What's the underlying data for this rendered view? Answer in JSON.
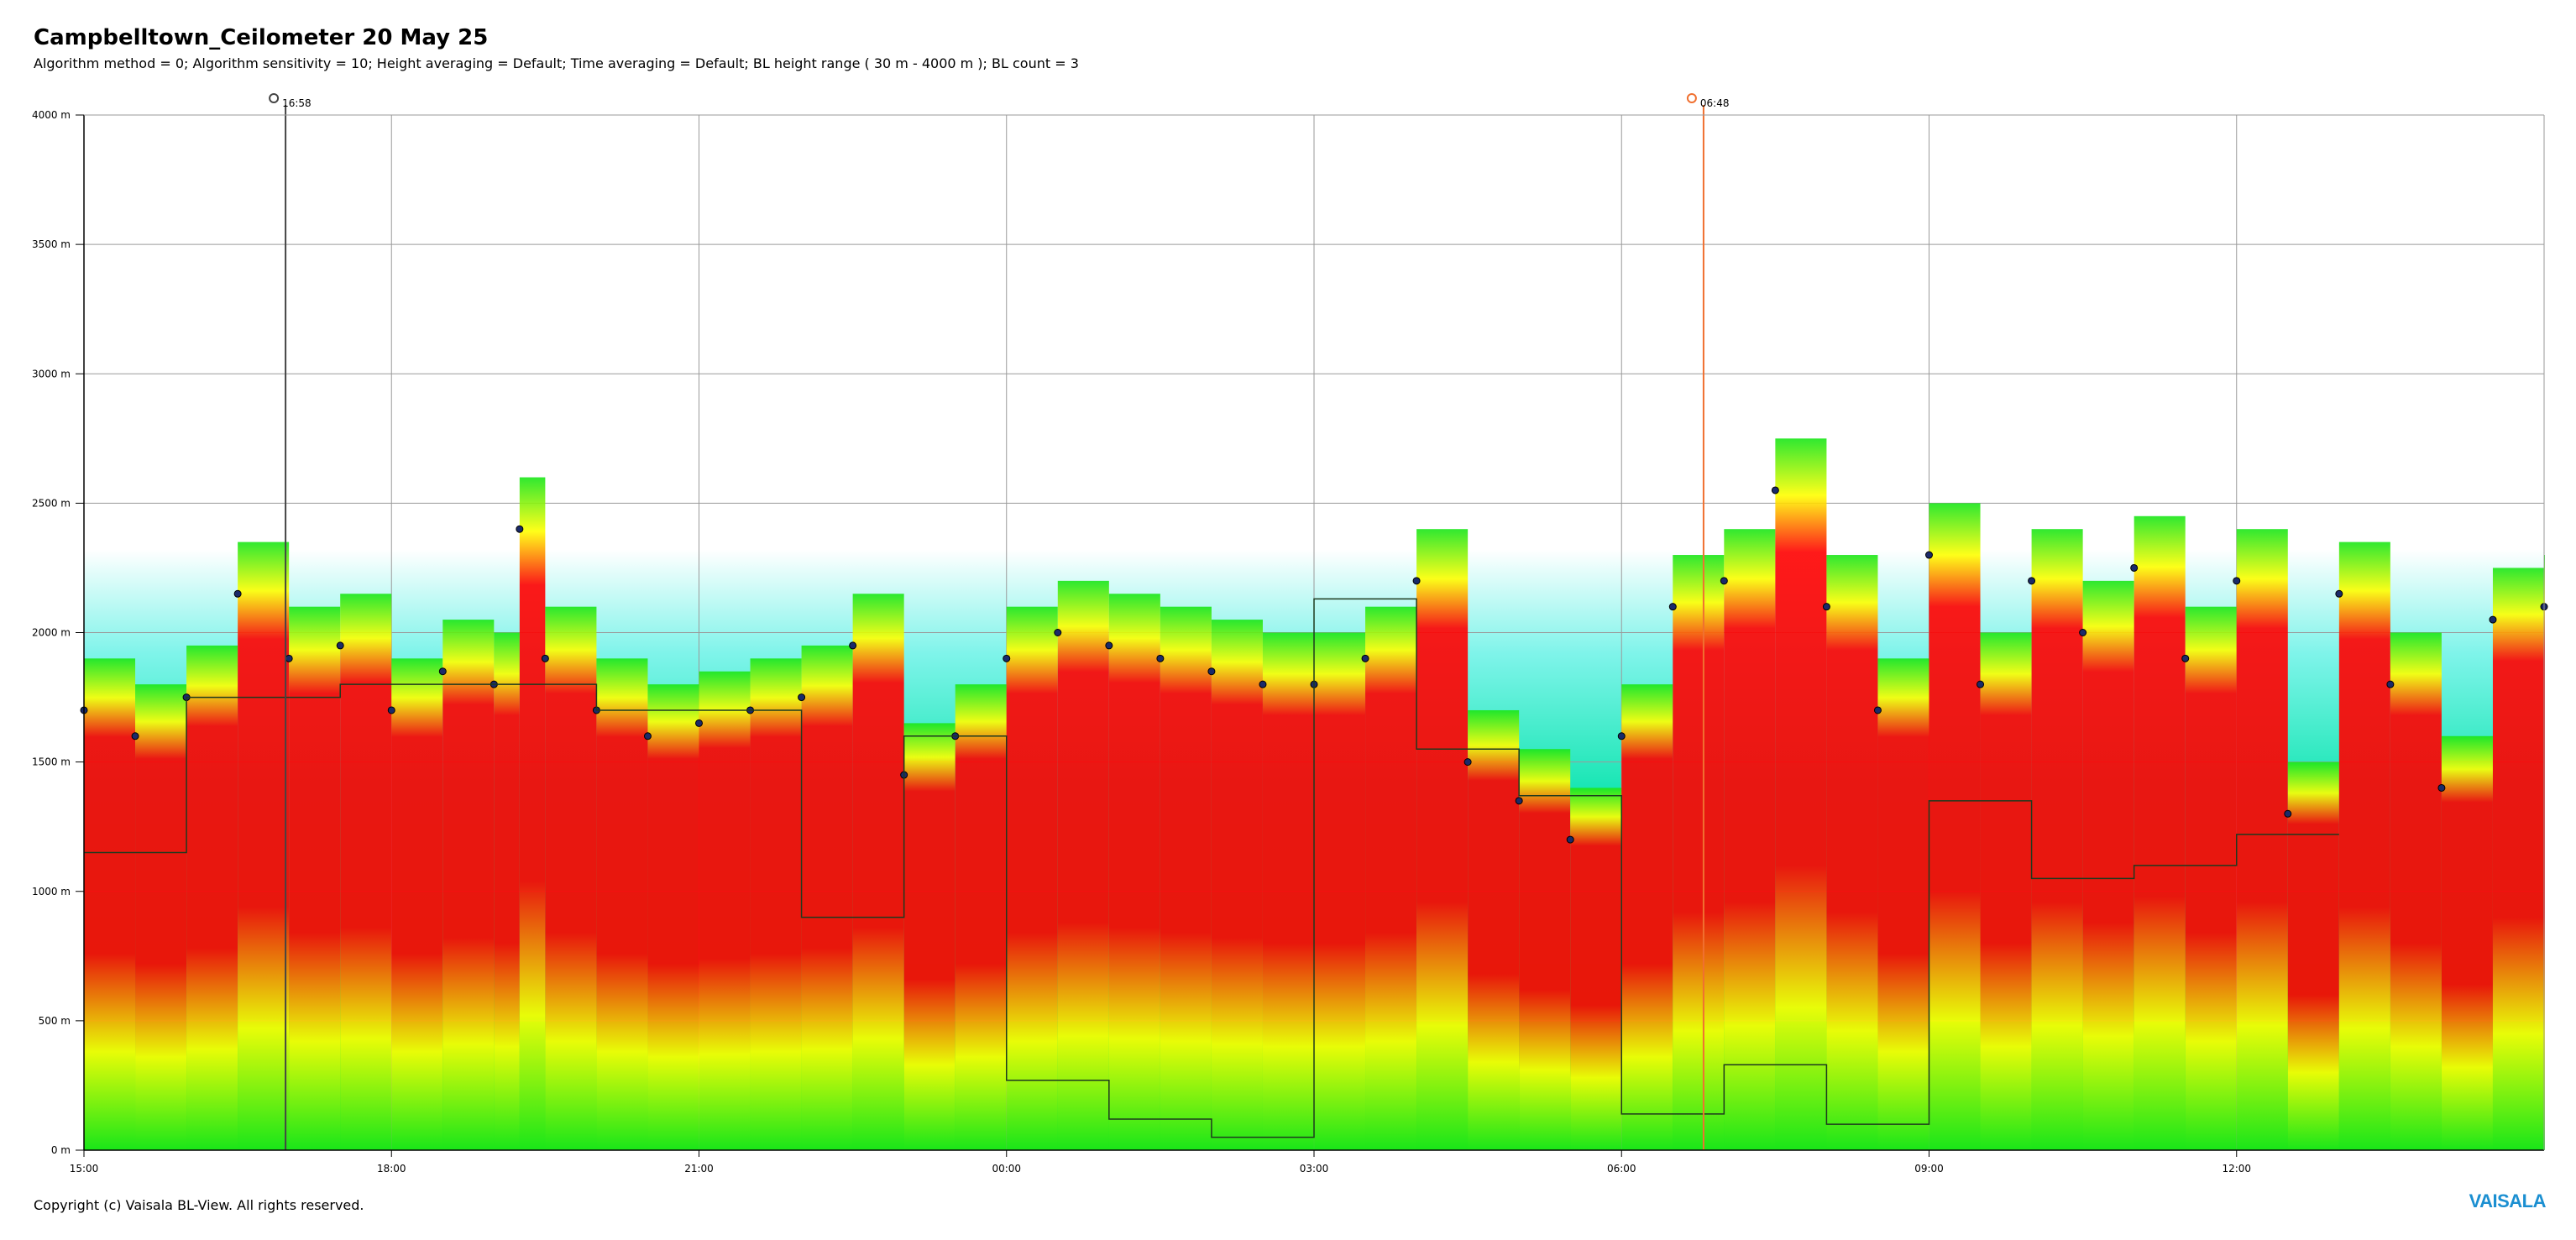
{
  "header": {
    "title": "Campbelltown_Ceilometer 20 May 25",
    "subtitle": "Algorithm method = 0; Algorithm sensitivity = 10; Height averaging = Default; Time averaging = Default; BL height range ( 30 m - 4000 m ); BL count = 3"
  },
  "footer": {
    "copyright": "Copyright (c) Vaisala BL-View. All rights reserved.",
    "brand": "VAISALA"
  },
  "chart_data": {
    "type": "heatmap",
    "title": "Campbelltown_Ceilometer 20 May 25",
    "x_start_hour": 15.0,
    "x_end_hour": 39.0,
    "ylim": [
      0,
      4000
    ],
    "y_ticks": [
      0,
      500,
      1000,
      1500,
      2000,
      2500,
      3000,
      3500,
      4000
    ],
    "y_tick_labels": [
      "0 m",
      "500 m",
      "1000 m",
      "1500 m",
      "2000 m",
      "2500 m",
      "3000 m",
      "3500 m",
      "4000 m"
    ],
    "x_ticks": [
      15,
      18,
      21,
      24,
      27,
      30,
      33,
      36
    ],
    "x_tick_labels": [
      "15:00",
      "18:00",
      "21:00",
      "00:00",
      "03:00",
      "06:00",
      "09:00",
      "12:00"
    ],
    "grid": true,
    "sunset": {
      "hour": 16.9667,
      "label": "16:58"
    },
    "sunrise": {
      "hour": 30.8,
      "label": "06:48"
    },
    "colors": {
      "background": "#00e0d0",
      "low": "#19e619",
      "mid": "#ffff00",
      "high": "#ff0000",
      "sunset_line": "#444444",
      "sunrise_line": "#f07030",
      "sun_icon_rise": "#f07030",
      "sun_icon_set": "#444444"
    },
    "aerosol_layer_top": [
      [
        15.0,
        1700
      ],
      [
        15.5,
        1600
      ],
      [
        16.0,
        1750
      ],
      [
        16.5,
        2150
      ],
      [
        17.0,
        1900
      ],
      [
        17.5,
        1950
      ],
      [
        18.0,
        1700
      ],
      [
        18.5,
        1850
      ],
      [
        19.0,
        1800
      ],
      [
        19.25,
        2400
      ],
      [
        19.5,
        1900
      ],
      [
        20.0,
        1700
      ],
      [
        20.5,
        1600
      ],
      [
        21.0,
        1650
      ],
      [
        21.5,
        1700
      ],
      [
        22.0,
        1750
      ],
      [
        22.5,
        1950
      ],
      [
        23.0,
        1450
      ],
      [
        23.5,
        1600
      ],
      [
        24.0,
        1900
      ],
      [
        24.5,
        2000
      ],
      [
        25.0,
        1950
      ],
      [
        25.5,
        1900
      ],
      [
        26.0,
        1850
      ],
      [
        26.5,
        1800
      ],
      [
        27.0,
        1800
      ],
      [
        27.5,
        1900
      ],
      [
        28.0,
        2200
      ],
      [
        28.5,
        1500
      ],
      [
        29.0,
        1350
      ],
      [
        29.5,
        1200
      ],
      [
        30.0,
        1600
      ],
      [
        30.5,
        2100
      ],
      [
        31.0,
        2200
      ],
      [
        31.5,
        2550
      ],
      [
        32.0,
        2100
      ],
      [
        32.5,
        1700
      ],
      [
        33.0,
        2300
      ],
      [
        33.5,
        1800
      ],
      [
        34.0,
        2200
      ],
      [
        34.5,
        2000
      ],
      [
        35.0,
        2250
      ],
      [
        35.5,
        1900
      ],
      [
        36.0,
        2200
      ],
      [
        36.5,
        1300
      ],
      [
        37.0,
        2150
      ],
      [
        37.5,
        1800
      ],
      [
        38.0,
        1400
      ],
      [
        38.5,
        2050
      ],
      [
        39.0,
        2100
      ]
    ],
    "bl_height_line": [
      [
        15.0,
        1150
      ],
      [
        16.0,
        1150
      ],
      [
        16.0,
        1750
      ],
      [
        17.5,
        1750
      ],
      [
        17.5,
        1800
      ],
      [
        20.0,
        1800
      ],
      [
        20.0,
        1700
      ],
      [
        22.0,
        1700
      ],
      [
        22.0,
        900
      ],
      [
        23.0,
        900
      ],
      [
        23.0,
        1600
      ],
      [
        24.0,
        1600
      ],
      [
        24.0,
        270
      ],
      [
        25.0,
        270
      ],
      [
        25.0,
        120
      ],
      [
        26.0,
        120
      ],
      [
        26.0,
        50
      ],
      [
        27.0,
        50
      ],
      [
        27.0,
        2130
      ],
      [
        28.0,
        2130
      ],
      [
        28.0,
        1550
      ],
      [
        29.0,
        1550
      ],
      [
        29.0,
        1370
      ],
      [
        30.0,
        1370
      ],
      [
        30.0,
        140
      ],
      [
        31.0,
        140
      ],
      [
        31.0,
        330
      ],
      [
        32.0,
        330
      ],
      [
        32.0,
        100
      ],
      [
        33.0,
        100
      ],
      [
        33.0,
        1350
      ],
      [
        34.0,
        1350
      ],
      [
        34.0,
        1050
      ],
      [
        35.0,
        1050
      ],
      [
        35.0,
        1100
      ],
      [
        36.0,
        1100
      ],
      [
        36.0,
        1220
      ],
      [
        37.0,
        1220
      ]
    ]
  }
}
